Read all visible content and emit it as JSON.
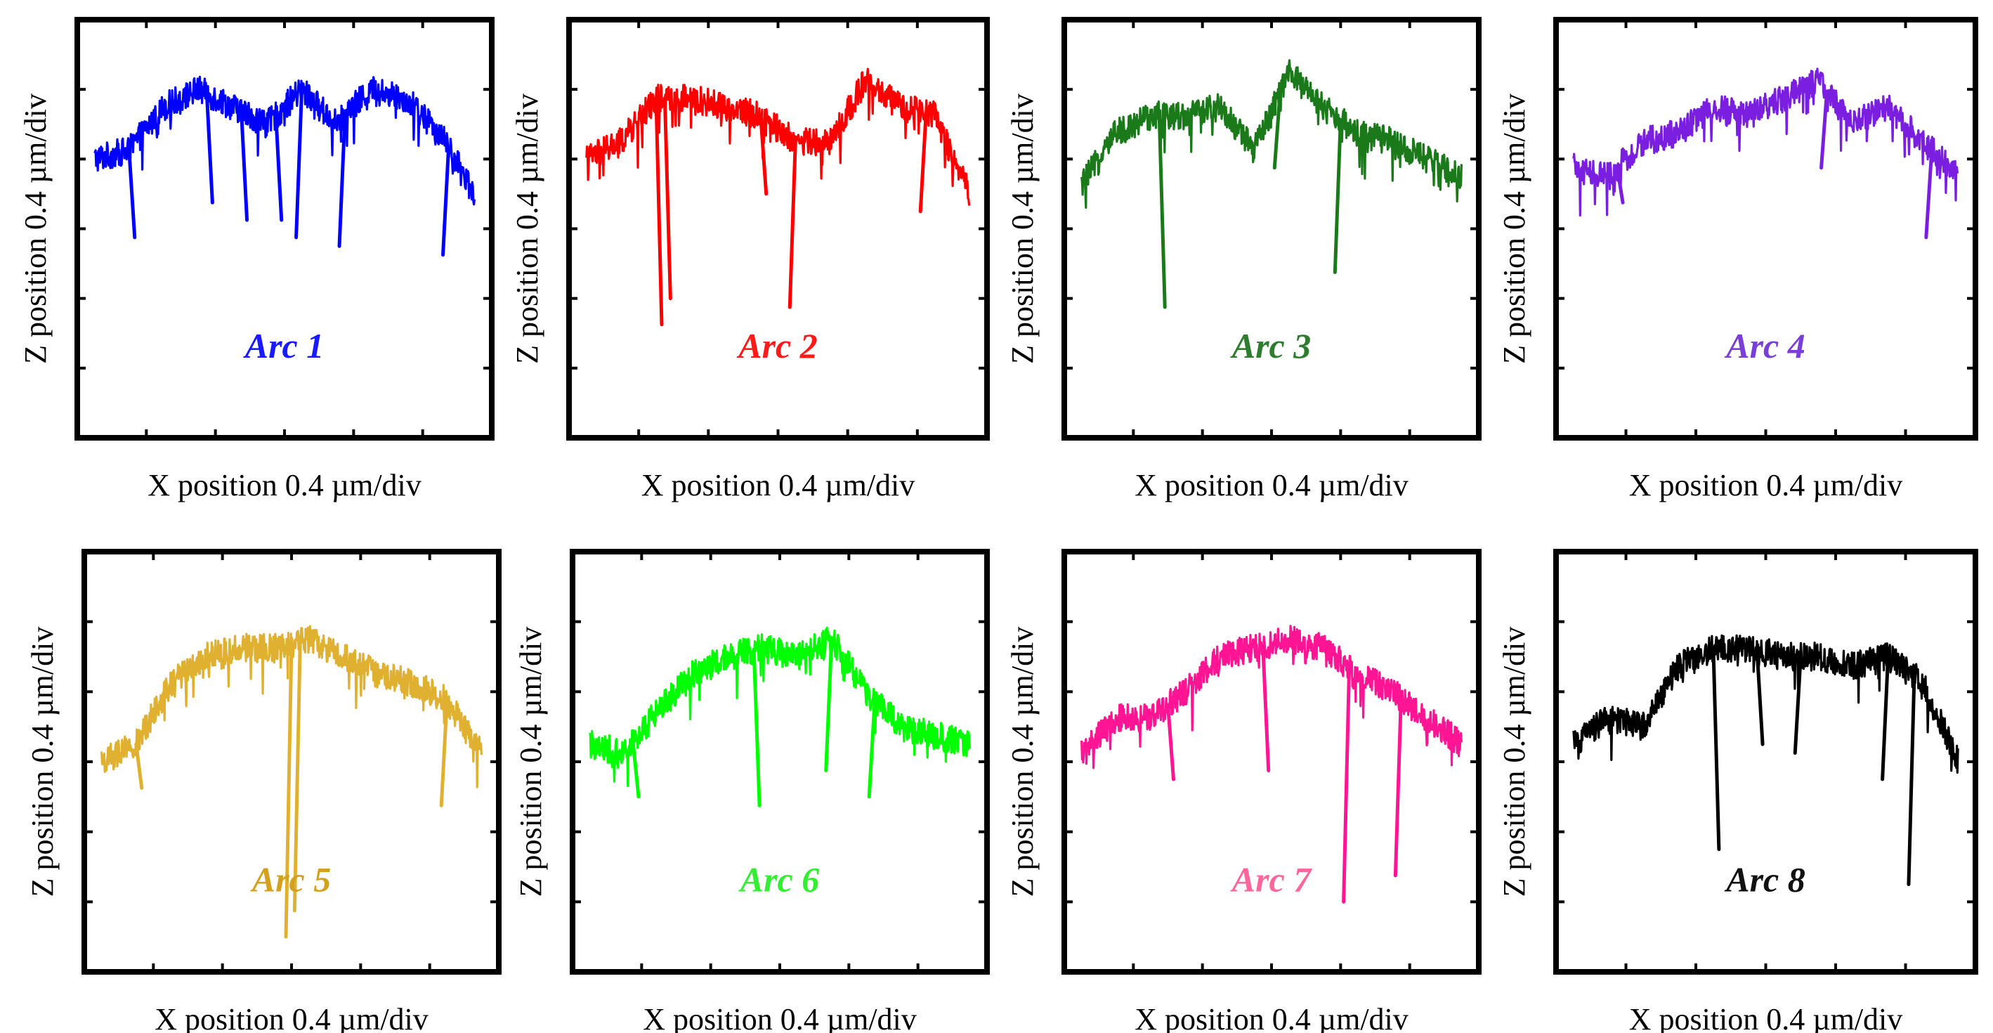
{
  "chart_data": [
    {
      "type": "line",
      "title": "Arc 1",
      "title_color": "#1a1aff",
      "line_color": "#0000ff",
      "xlabel": "X position 0.4 µm/div",
      "ylabel": "Z position 0.4 µm/div",
      "xlim": [
        0,
        2.4
      ],
      "ylim": [
        0,
        2.4
      ],
      "x": [
        0.1,
        0.3,
        0.5,
        0.7,
        0.9,
        1.1,
        1.3,
        1.5,
        1.7,
        1.9,
        2.1,
        2.3
      ],
      "y": [
        1.6,
        1.65,
        1.9,
        2.0,
        1.9,
        1.8,
        2.0,
        1.8,
        2.0,
        1.95,
        1.75,
        1.4
      ],
      "spikes": [
        [
          0.3,
          1.15
        ],
        [
          0.75,
          1.35
        ],
        [
          0.95,
          1.25
        ],
        [
          1.15,
          1.25
        ],
        [
          1.3,
          1.15
        ],
        [
          1.55,
          1.1
        ],
        [
          2.15,
          1.05
        ]
      ]
    },
    {
      "type": "line",
      "title": "Arc 2",
      "title_color": "#ff1a1a",
      "line_color": "#ff0000",
      "xlabel": "X position 0.4 µm/div",
      "ylabel": "Z position 0.4 µm/div",
      "xlim": [
        0,
        2.4
      ],
      "ylim": [
        0,
        2.4
      ],
      "x": [
        0.1,
        0.3,
        0.5,
        0.7,
        0.9,
        1.1,
        1.3,
        1.5,
        1.7,
        1.9,
        2.1,
        2.3
      ],
      "y": [
        1.6,
        1.7,
        1.95,
        1.95,
        1.9,
        1.85,
        1.7,
        1.7,
        2.05,
        1.9,
        1.85,
        1.4
      ],
      "spikes": [
        [
          0.5,
          0.65
        ],
        [
          0.55,
          0.8
        ],
        [
          1.1,
          1.4
        ],
        [
          1.3,
          0.75
        ],
        [
          2.05,
          1.3
        ]
      ]
    },
    {
      "type": "line",
      "title": "Arc 3",
      "title_color": "#2e7d2e",
      "line_color": "#1a7a1a",
      "xlabel": "X position 0.4 µm/div",
      "ylabel": "Z position 0.4 µm/div",
      "xlim": [
        0,
        2.4
      ],
      "ylim": [
        0,
        2.4
      ],
      "x": [
        0.1,
        0.3,
        0.5,
        0.7,
        0.9,
        1.1,
        1.3,
        1.5,
        1.7,
        1.9,
        2.1,
        2.3
      ],
      "y": [
        1.45,
        1.75,
        1.85,
        1.85,
        1.9,
        1.65,
        2.1,
        1.9,
        1.75,
        1.7,
        1.6,
        1.5
      ],
      "spikes": [
        [
          0.55,
          0.75
        ],
        [
          1.25,
          1.55
        ],
        [
          1.6,
          0.95
        ]
      ]
    },
    {
      "type": "line",
      "title": "Arc 4",
      "title_color": "#7b3fd9",
      "line_color": "#7a1fe0",
      "xlabel": "X position 0.4 µm/div",
      "ylabel": "Z position 0.4 µm/div",
      "xlim": [
        0,
        2.4
      ],
      "ylim": [
        0,
        2.4
      ],
      "x": [
        0.1,
        0.3,
        0.5,
        0.7,
        0.9,
        1.1,
        1.3,
        1.5,
        1.7,
        1.9,
        2.1,
        2.3
      ],
      "y": [
        1.55,
        1.5,
        1.7,
        1.75,
        1.9,
        1.85,
        1.95,
        2.05,
        1.8,
        1.9,
        1.7,
        1.5
      ],
      "spikes": [
        [
          0.35,
          1.35
        ],
        [
          1.55,
          1.55
        ],
        [
          2.15,
          1.15
        ]
      ]
    },
    {
      "type": "line",
      "title": "Arc 5",
      "title_color": "#d4a020",
      "line_color": "#e0b030",
      "xlabel": "X position 0.4 µm/div",
      "ylabel": "Z position 0.4 µm/div",
      "xlim": [
        0,
        2.4
      ],
      "ylim": [
        0,
        2.4
      ],
      "x": [
        0.1,
        0.3,
        0.5,
        0.7,
        0.9,
        1.1,
        1.3,
        1.5,
        1.7,
        1.9,
        2.1,
        2.3
      ],
      "y": [
        1.2,
        1.3,
        1.65,
        1.8,
        1.85,
        1.85,
        1.9,
        1.8,
        1.7,
        1.65,
        1.55,
        1.25
      ],
      "spikes": [
        [
          0.3,
          1.05
        ],
        [
          1.2,
          0.2
        ],
        [
          1.25,
          0.35
        ],
        [
          2.1,
          0.95
        ]
      ]
    },
    {
      "type": "line",
      "title": "Arc 6",
      "title_color": "#33ee33",
      "line_color": "#00ff00",
      "xlabel": "X position 0.4 µm/div",
      "ylabel": "Z position 0.4 µm/div",
      "xlim": [
        0,
        2.4
      ],
      "ylim": [
        0,
        2.4
      ],
      "x": [
        0.1,
        0.3,
        0.5,
        0.7,
        0.9,
        1.1,
        1.3,
        1.5,
        1.7,
        1.9,
        2.1,
        2.3
      ],
      "y": [
        1.3,
        1.25,
        1.5,
        1.7,
        1.8,
        1.85,
        1.8,
        1.9,
        1.6,
        1.4,
        1.35,
        1.3
      ],
      "spikes": [
        [
          0.35,
          1.0
        ],
        [
          1.05,
          0.95
        ],
        [
          1.5,
          1.15
        ],
        [
          1.75,
          1.0
        ]
      ]
    },
    {
      "type": "line",
      "title": "Arc 7",
      "title_color": "#ff6699",
      "line_color": "#ff1493",
      "xlabel": "X position 0.4 µm/div",
      "ylabel": "Z position 0.4 µm/div",
      "xlim": [
        0,
        2.4
      ],
      "ylim": [
        0,
        2.4
      ],
      "x": [
        0.1,
        0.3,
        0.5,
        0.7,
        0.9,
        1.1,
        1.3,
        1.5,
        1.7,
        1.9,
        2.1,
        2.3
      ],
      "y": [
        1.25,
        1.45,
        1.45,
        1.6,
        1.8,
        1.85,
        1.9,
        1.85,
        1.7,
        1.6,
        1.45,
        1.3
      ],
      "spikes": [
        [
          0.6,
          1.1
        ],
        [
          1.15,
          1.15
        ],
        [
          1.65,
          0.4
        ],
        [
          1.95,
          0.55
        ]
      ]
    },
    {
      "type": "line",
      "title": "Arc 8",
      "title_color": "#111111",
      "line_color": "#000000",
      "xlabel": "X position 0.4 µm/div",
      "ylabel": "Z position 0.4 µm/div",
      "xlim": [
        0,
        2.4
      ],
      "ylim": [
        0,
        2.4
      ],
      "x": [
        0.1,
        0.3,
        0.5,
        0.7,
        0.9,
        1.1,
        1.3,
        1.5,
        1.7,
        1.9,
        2.1,
        2.3
      ],
      "y": [
        1.3,
        1.45,
        1.4,
        1.75,
        1.85,
        1.85,
        1.8,
        1.8,
        1.75,
        1.8,
        1.65,
        1.2
      ],
      "spikes": [
        [
          0.9,
          0.7
        ],
        [
          1.15,
          1.3
        ],
        [
          1.4,
          1.25
        ],
        [
          1.9,
          1.1
        ],
        [
          2.05,
          0.5
        ]
      ]
    }
  ]
}
